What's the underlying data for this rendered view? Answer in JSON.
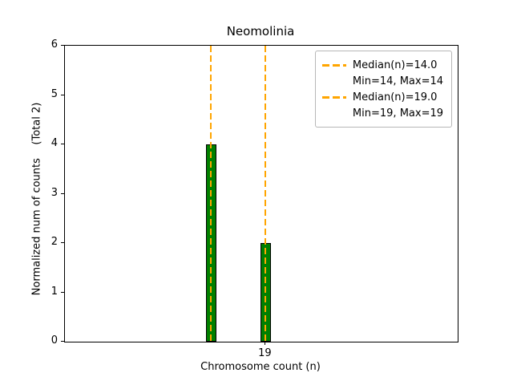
{
  "chart_data": {
    "type": "bar",
    "title": "Neomolinia",
    "xlabel": "Chromosome count (n)",
    "ylabel": "Normalized num of counts    (Total 2)",
    "xlim": [
      0.6,
      36.6
    ],
    "ylim": [
      0,
      6
    ],
    "yticks": [
      0,
      1,
      2,
      3,
      4,
      5,
      6
    ],
    "xticks": [
      {
        "value": 19,
        "label": "19"
      }
    ],
    "bars": [
      {
        "x": 14,
        "height": 4,
        "width": 1
      },
      {
        "x": 19,
        "height": 2,
        "width": 1
      }
    ],
    "median_lines": [
      {
        "x": 14
      },
      {
        "x": 19
      }
    ],
    "legend": [
      {
        "marker": true,
        "label": "Median(n)=14.0"
      },
      {
        "marker": false,
        "label": "Min=14, Max=14"
      },
      {
        "marker": true,
        "label": "Median(n)=19.0"
      },
      {
        "marker": false,
        "label": "Min=19, Max=19"
      }
    ],
    "colors": {
      "bar_fill": "#008000",
      "bar_edge": "#000000",
      "median": "#ffa500",
      "legend_border": "#b7b7b7"
    }
  }
}
